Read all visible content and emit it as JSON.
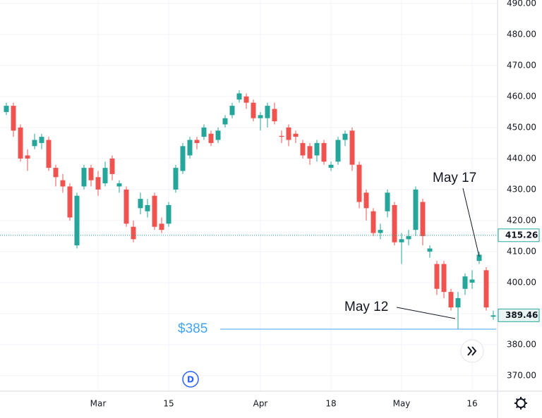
{
  "chart_data": {
    "type": "candlestick",
    "categories": [
      null,
      null,
      null,
      null,
      null,
      null,
      null,
      null,
      null,
      null,
      null,
      null,
      null,
      "Mar",
      null,
      null,
      null,
      null,
      null,
      null,
      null,
      null,
      null,
      "15",
      null,
      null,
      null,
      null,
      null,
      null,
      null,
      null,
      null,
      null,
      null,
      null,
      "Apr",
      null,
      null,
      null,
      null,
      null,
      null,
      null,
      null,
      null,
      "18",
      null,
      null,
      null,
      null,
      null,
      null,
      null,
      null,
      null,
      "May",
      null,
      null,
      null,
      null,
      null,
      null,
      null,
      null,
      null,
      "16",
      null,
      null,
      null
    ],
    "open": [
      455,
      457,
      450,
      441,
      444,
      445,
      446,
      437,
      433,
      431,
      412,
      431,
      437,
      434,
      432,
      440,
      431,
      430,
      418,
      424,
      423,
      428,
      419,
      419,
      430,
      436,
      441,
      446,
      447,
      448,
      446,
      451,
      454,
      459,
      460,
      458,
      453,
      453,
      456,
      447.3,
      450,
      448,
      445,
      444,
      441,
      445,
      437,
      439,
      446,
      449,
      438,
      429,
      423,
      416,
      423,
      425,
      413,
      414,
      417,
      426,
      410,
      406,
      406,
      397,
      392,
      398,
      400,
      407,
      404,
      389
    ],
    "high": [
      458,
      458,
      451,
      443,
      448,
      448,
      447,
      438,
      435,
      432,
      429,
      438,
      438,
      436,
      439,
      441,
      433,
      431,
      420,
      429,
      427,
      429,
      421,
      426,
      438,
      445,
      447,
      447,
      451,
      449,
      450,
      454,
      458,
      462,
      461,
      459,
      455,
      458,
      458,
      449,
      451,
      449,
      446,
      445,
      446,
      446,
      439,
      447,
      449,
      450,
      439,
      430,
      424,
      419,
      430,
      426,
      416,
      417,
      431,
      427,
      412,
      407,
      407,
      398,
      397,
      403,
      404,
      410,
      405,
      391
    ],
    "low": [
      454,
      447,
      439,
      436,
      443,
      443,
      436,
      431,
      429,
      420,
      411,
      430,
      431,
      428,
      431,
      433,
      429,
      418,
      413,
      422,
      421,
      417,
      416,
      418,
      429,
      435,
      440,
      443,
      446,
      444,
      445,
      450,
      453,
      458,
      456,
      452,
      449,
      450,
      451,
      445,
      444,
      445,
      440,
      438,
      439,
      438,
      436,
      438,
      444,
      436,
      424,
      420,
      415,
      414,
      421,
      412,
      406,
      412,
      415,
      412,
      408,
      396,
      395,
      391,
      385,
      396,
      398,
      406,
      391,
      388
    ],
    "close": [
      457,
      449,
      440,
      440,
      446,
      447,
      437,
      434,
      431,
      421,
      428,
      437,
      433,
      430,
      437,
      435,
      432,
      419,
      414,
      427,
      425,
      418,
      417,
      425,
      437,
      444,
      446,
      445,
      450,
      445,
      449,
      453,
      457,
      461,
      458,
      453,
      454,
      457,
      452,
      447,
      446,
      447,
      441,
      440,
      445,
      439,
      438,
      446,
      448,
      438,
      426,
      424,
      416,
      417,
      429,
      413,
      414,
      415,
      430,
      415,
      411,
      398,
      397,
      392,
      395,
      402,
      401,
      409,
      392,
      389.46
    ],
    "up_color": "#26a69a",
    "down_color": "#ef5350",
    "ylim": [
      365,
      491.1
    ],
    "yticks": [
      {
        "value": 370,
        "label": "370.00"
      },
      {
        "value": 380,
        "label": "380.00"
      },
      {
        "value": 390,
        "label": "390.00"
      },
      {
        "value": 400,
        "label": "400.00"
      },
      {
        "value": 410,
        "label": "410.00"
      },
      {
        "value": 420,
        "label": "420.00"
      },
      {
        "value": 430,
        "label": "430.00"
      },
      {
        "value": 440,
        "label": "440.00"
      },
      {
        "value": 450,
        "label": "450.00"
      },
      {
        "value": 460,
        "label": "460.00"
      },
      {
        "value": 470,
        "label": "470.00"
      },
      {
        "value": 480,
        "label": "480.00"
      },
      {
        "value": 490,
        "label": "490.00"
      }
    ],
    "grid": true,
    "reference_lines": [
      {
        "value": 385,
        "label": "$385",
        "color": "#42a5f5"
      }
    ],
    "marked_price": 415.26,
    "last_price": 389.46,
    "annotations": [
      {
        "text": "May 17"
      },
      {
        "text": "May 12"
      }
    ],
    "interval_badge": "D"
  }
}
